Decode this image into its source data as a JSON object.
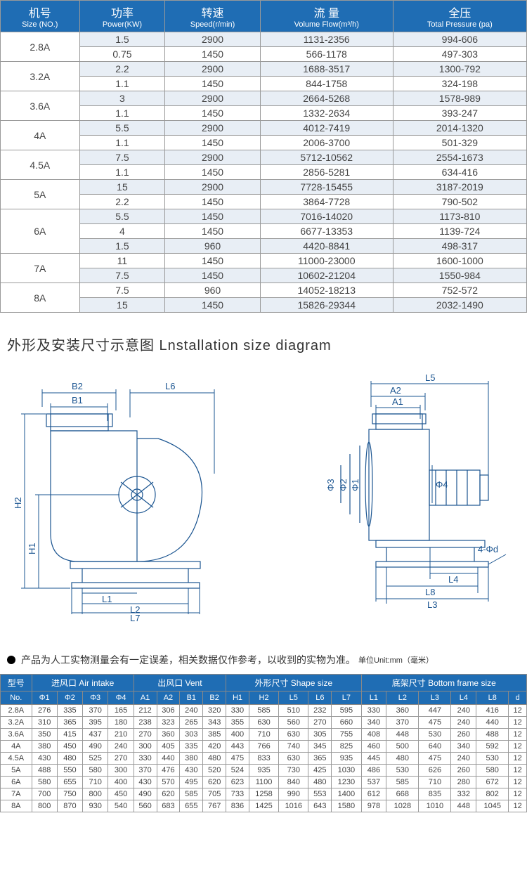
{
  "specTable": {
    "headers": [
      {
        "cn": "机号",
        "en": "Size (NO.)"
      },
      {
        "cn": "功率",
        "en": "Power(KW)"
      },
      {
        "cn": "转速",
        "en": "Speed(r/min)"
      },
      {
        "cn": "流 量",
        "en": "Volume Flow(m³/h)"
      },
      {
        "cn": "全压",
        "en": "Total Pressure (pa)"
      }
    ],
    "groups": [
      {
        "no": "2.8A",
        "rows": [
          [
            "1.5",
            "2900",
            "1131-2356",
            "994-606"
          ],
          [
            "0.75",
            "1450",
            "566-1178",
            "497-303"
          ]
        ]
      },
      {
        "no": "3.2A",
        "rows": [
          [
            "2.2",
            "2900",
            "1688-3517",
            "1300-792"
          ],
          [
            "1.1",
            "1450",
            "844-1758",
            "324-198"
          ]
        ]
      },
      {
        "no": "3.6A",
        "rows": [
          [
            "3",
            "2900",
            "2664-5268",
            "1578-989"
          ],
          [
            "1.1",
            "1450",
            "1332-2634",
            "393-247"
          ]
        ]
      },
      {
        "no": "4A",
        "rows": [
          [
            "5.5",
            "2900",
            "4012-7419",
            "2014-1320"
          ],
          [
            "1.1",
            "1450",
            "2006-3700",
            "501-329"
          ]
        ]
      },
      {
        "no": "4.5A",
        "rows": [
          [
            "7.5",
            "2900",
            "5712-10562",
            "2554-1673"
          ],
          [
            "1.1",
            "1450",
            "2856-5281",
            "634-416"
          ]
        ]
      },
      {
        "no": "5A",
        "rows": [
          [
            "15",
            "2900",
            "7728-15455",
            "3187-2019"
          ],
          [
            "2.2",
            "1450",
            "3864-7728",
            "790-502"
          ]
        ]
      },
      {
        "no": "6A",
        "rows": [
          [
            "5.5",
            "1450",
            "7016-14020",
            "1173-810"
          ],
          [
            "4",
            "1450",
            "6677-13353",
            "1139-724"
          ],
          [
            "1.5",
            "960",
            "4420-8841",
            "498-317"
          ]
        ]
      },
      {
        "no": "7A",
        "rows": [
          [
            "11",
            "1450",
            "11000-23000",
            "1600-1000"
          ],
          [
            "7.5",
            "1450",
            "10602-21204",
            "1550-984"
          ]
        ]
      },
      {
        "no": "8A",
        "rows": [
          [
            "7.5",
            "960",
            "14052-18213",
            "752-572"
          ],
          [
            "15",
            "1450",
            "15826-29344",
            "2032-1490"
          ]
        ]
      }
    ]
  },
  "sectionTitle": "外形及安装尺寸示意图 Lnstallation size diagram",
  "diagram": {
    "left": {
      "labels": [
        "B2",
        "B1",
        "L6",
        "H2",
        "H1",
        "L1",
        "L2",
        "L7"
      ]
    },
    "right": {
      "labels": [
        "L5",
        "A2",
        "A1",
        "Φ3",
        "Φ2",
        "Φ1",
        "Φ4",
        "L4",
        "L8",
        "L3",
        "4-Φd"
      ]
    },
    "colors": {
      "line": "#1a5490",
      "text": "#1a5490"
    }
  },
  "note": "产品为人工实物测量会有一定误差，相关数据仅作参考，以收到的实物为准。",
  "unitLabel": "单位Unit:mm（毫米）",
  "dimTable": {
    "groupHeaders": [
      {
        "label": "型号",
        "span": 1
      },
      {
        "label": "进风口 Air intake",
        "span": 4
      },
      {
        "label": "出风口 Vent",
        "span": 4
      },
      {
        "label": "外形尺寸 Shape size",
        "span": 5
      },
      {
        "label": "底架尺寸 Bottom frame size",
        "span": 6
      }
    ],
    "cols": [
      "No.",
      "Φ1",
      "Φ2",
      "Φ3",
      "Φ4",
      "A1",
      "A2",
      "B1",
      "B2",
      "H1",
      "H2",
      "L5",
      "L6",
      "L7",
      "L1",
      "L2",
      "L3",
      "L4",
      "L8",
      "d"
    ],
    "rows": [
      [
        "2.8A",
        "276",
        "335",
        "370",
        "165",
        "212",
        "306",
        "240",
        "320",
        "330",
        "585",
        "510",
        "232",
        "595",
        "330",
        "360",
        "447",
        "240",
        "416",
        "12"
      ],
      [
        "3.2A",
        "310",
        "365",
        "395",
        "180",
        "238",
        "323",
        "265",
        "343",
        "355",
        "630",
        "560",
        "270",
        "660",
        "340",
        "370",
        "475",
        "240",
        "440",
        "12"
      ],
      [
        "3.6A",
        "350",
        "415",
        "437",
        "210",
        "270",
        "360",
        "303",
        "385",
        "400",
        "710",
        "630",
        "305",
        "755",
        "408",
        "448",
        "530",
        "260",
        "488",
        "12"
      ],
      [
        "4A",
        "380",
        "450",
        "490",
        "240",
        "300",
        "405",
        "335",
        "420",
        "443",
        "766",
        "740",
        "345",
        "825",
        "460",
        "500",
        "640",
        "340",
        "592",
        "12"
      ],
      [
        "4.5A",
        "430",
        "480",
        "525",
        "270",
        "330",
        "440",
        "380",
        "480",
        "475",
        "833",
        "630",
        "365",
        "935",
        "445",
        "480",
        "475",
        "240",
        "530",
        "12"
      ],
      [
        "5A",
        "488",
        "550",
        "580",
        "300",
        "370",
        "476",
        "430",
        "520",
        "524",
        "935",
        "730",
        "425",
        "1030",
        "486",
        "530",
        "626",
        "260",
        "580",
        "12"
      ],
      [
        "6A",
        "580",
        "655",
        "710",
        "400",
        "430",
        "570",
        "495",
        "620",
        "623",
        "1100",
        "840",
        "480",
        "1230",
        "537",
        "585",
        "710",
        "280",
        "672",
        "12"
      ],
      [
        "7A",
        "700",
        "750",
        "800",
        "450",
        "490",
        "620",
        "585",
        "705",
        "733",
        "1258",
        "990",
        "553",
        "1400",
        "612",
        "668",
        "835",
        "332",
        "802",
        "12"
      ],
      [
        "8A",
        "800",
        "870",
        "930",
        "540",
        "560",
        "683",
        "655",
        "767",
        "836",
        "1425",
        "1016",
        "643",
        "1580",
        "978",
        "1028",
        "1010",
        "448",
        "1045",
        "12"
      ]
    ]
  }
}
